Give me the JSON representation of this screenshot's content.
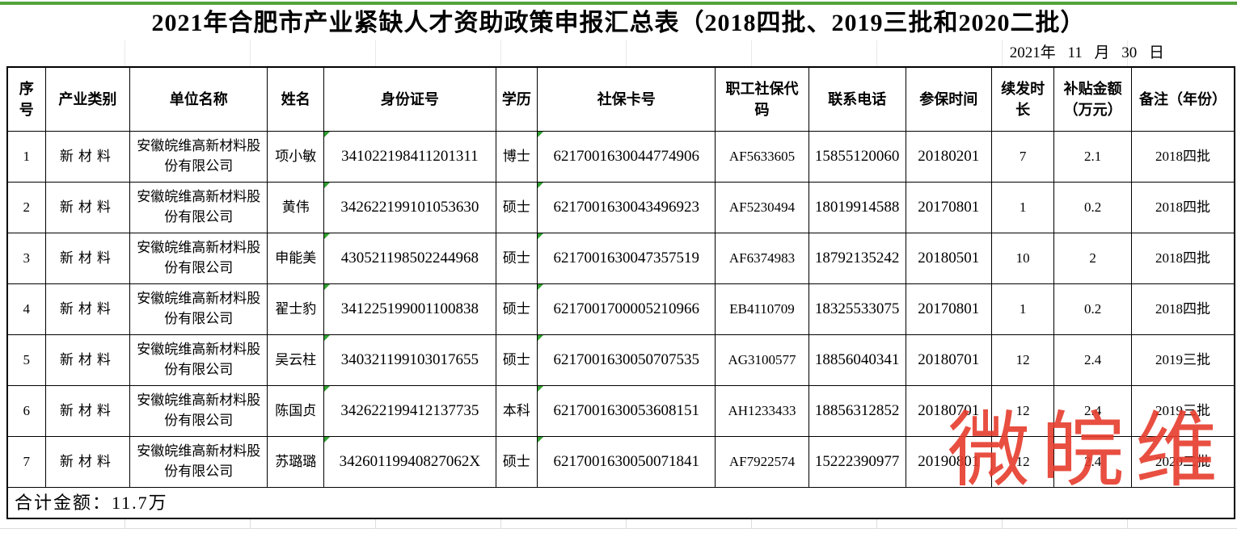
{
  "title": "2021年合肥市产业紧缺人才资助政策申报汇总表（2018四批、2019三批和2020二批）",
  "date_line": "2021年 11 月 30 日",
  "table": {
    "columns": [
      "序号",
      "产业类别",
      "单位名称",
      "姓名",
      "身份证号",
      "学历",
      "社保卡号",
      "职工社保代码",
      "联系电话",
      "参保时间",
      "续发时长",
      "补贴金额（万元）",
      "备注（年份）"
    ],
    "rows": [
      [
        "1",
        "新材料",
        "安徽皖维高新材料股份有限公司",
        "项小敏",
        "341022198411201311",
        "博士",
        "6217001630044774906",
        "AF5633605",
        "15855120060",
        "20180201",
        "7",
        "2.1",
        "2018四批"
      ],
      [
        "2",
        "新材料",
        "安徽皖维高新材料股份有限公司",
        "黄伟",
        "342622199101053630",
        "硕士",
        "6217001630043496923",
        "AF5230494",
        "18019914588",
        "20170801",
        "1",
        "0.2",
        "2018四批"
      ],
      [
        "3",
        "新材料",
        "安徽皖维高新材料股份有限公司",
        "申能美",
        "430521198502244968",
        "硕士",
        "6217001630047357519",
        "AF6374983",
        "18792135242",
        "20180501",
        "10",
        "2",
        "2018四批"
      ],
      [
        "4",
        "新材料",
        "安徽皖维高新材料股份有限公司",
        "翟士豹",
        "341225199001100838",
        "硕士",
        "6217001700005210966",
        "EB4110709",
        "18325533075",
        "20170801",
        "1",
        "0.2",
        "2018四批"
      ],
      [
        "5",
        "新材料",
        "安徽皖维高新材料股份有限公司",
        "吴云柱",
        "340321199103017655",
        "硕士",
        "6217001630050707535",
        "AG3100577",
        "18856040341",
        "20180701",
        "12",
        "2.4",
        "2019三批"
      ],
      [
        "6",
        "新材料",
        "安徽皖维高新材料股份有限公司",
        "陈国贞",
        "342622199412137735",
        "本科",
        "6217001630053608151",
        "AH1233433",
        "18856312852",
        "20180701",
        "12",
        "2.4",
        "2019三批"
      ],
      [
        "7",
        "新材料",
        "安徽皖维高新材料股份有限公司",
        "苏璐璐",
        "34260119940827062X",
        "硕士",
        "6217001630050071841",
        "AF7922574",
        "15222390977",
        "20190801",
        "12",
        "2.4",
        "2020二批"
      ]
    ],
    "green_corner_columns": [
      4,
      6
    ],
    "footer_total": "合计金额：11.7万"
  },
  "watermark": "微皖维",
  "colors": {
    "top_bar_green": "#53a33b",
    "watermark_red": "#e63c2d",
    "cell_flag_green": "#2fa12f",
    "grid_black": "#000000"
  }
}
